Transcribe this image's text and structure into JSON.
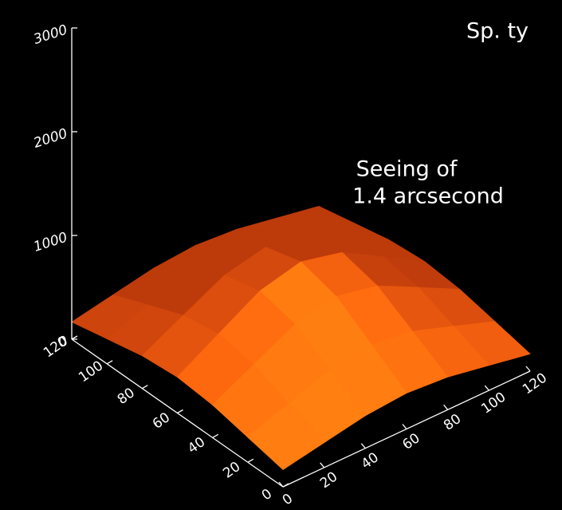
{
  "chart_data": {
    "type": "surface",
    "title": "Sp. ty",
    "annotations": [
      "Seeing of",
      "1.4 arcsecond"
    ],
    "x": [
      0,
      20,
      40,
      60,
      80,
      100,
      120
    ],
    "y": [
      0,
      20,
      40,
      60,
      80,
      100,
      120
    ],
    "z": [
      [
        166,
        241,
        315,
        346,
        315,
        241,
        166
      ],
      [
        241,
        382,
        519,
        577,
        519,
        382,
        241
      ],
      [
        315,
        519,
        719,
        804,
        719,
        519,
        315
      ],
      [
        346,
        577,
        804,
        900,
        804,
        577,
        346
      ],
      [
        315,
        519,
        719,
        804,
        719,
        519,
        315
      ],
      [
        241,
        382,
        519,
        577,
        519,
        382,
        241
      ],
      [
        166,
        241,
        315,
        346,
        315,
        241,
        166
      ]
    ],
    "color": "#ff6a10",
    "xlim": [
      0,
      120
    ],
    "ylim": [
      0,
      120
    ],
    "zlim": [
      0,
      3000
    ],
    "xticks": [
      0,
      20,
      40,
      60,
      80,
      100,
      120
    ],
    "yticks": [
      0,
      20,
      40,
      60,
      80,
      100,
      120
    ],
    "zticks": [
      0,
      1000,
      2000,
      3000
    ]
  }
}
